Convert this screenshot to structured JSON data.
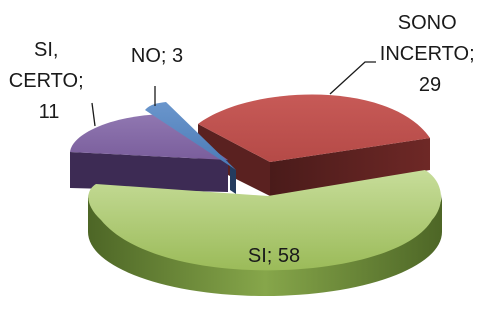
{
  "chart_data": {
    "type": "pie",
    "style": "3d-exploded",
    "title": "",
    "slices": [
      {
        "label": "SONO INCERTO",
        "value": 29,
        "color": "#C0504D",
        "text": "SONO INCERTO; 29"
      },
      {
        "label": "SI",
        "value": 58,
        "color": "#9BBB59",
        "text": "SI; 58"
      },
      {
        "label": "SI, CERTO",
        "value": 11,
        "color": "#8064A2",
        "text": "SI, CERTO; 11"
      },
      {
        "label": "NO",
        "value": 3,
        "color": "#4F81BD",
        "text": "NO; 3"
      }
    ],
    "legend": "none"
  },
  "labels": {
    "sono_incerto": [
      "SONO",
      "INCERTO;",
      "29"
    ],
    "si": "SI; 58",
    "si_certo": [
      "SI,",
      "CERTO;",
      "11"
    ],
    "no": "NO; 3"
  }
}
